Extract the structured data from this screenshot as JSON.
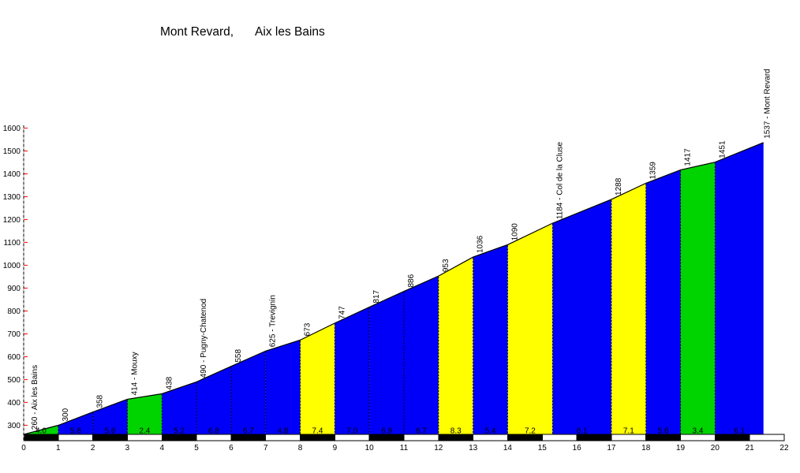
{
  "title": {
    "climb": "Mont Revard,",
    "start_town": "Aix les Bains"
  },
  "colors": {
    "easy_green": "#00D400",
    "moderate_blue": "#0000F8",
    "steep_yellow": "#FFFF00",
    "bar_black": "#000000",
    "bar_white": "#FFFFFF",
    "tick_red": "#FF2020",
    "axis_gray": "#9a9a9a",
    "axis_black": "#000000",
    "outline_black": "#000000",
    "gradient_text": "#1a1a1a"
  },
  "chart_data": {
    "type": "area",
    "title": "Mont Revard, Aix les Bains",
    "xlabel": "",
    "ylabel": "",
    "xlim": [
      0,
      22
    ],
    "ylim": [
      260,
      1600
    ],
    "grid": false,
    "legend": false,
    "x_ticks": [
      0,
      1,
      2,
      3,
      4,
      5,
      6,
      7,
      8,
      9,
      10,
      11,
      12,
      13,
      14,
      15,
      16,
      17,
      18,
      19,
      20,
      21,
      22
    ],
    "y_ticks": [
      300,
      400,
      500,
      600,
      700,
      800,
      900,
      1000,
      1100,
      1200,
      1300,
      1400,
      1500,
      1600
    ],
    "start": {
      "km": 0,
      "elevation": 260,
      "label": "260 - Aix les Bains"
    },
    "segments": [
      {
        "from": 0,
        "to": 1,
        "color": "green",
        "gradient": "4.0",
        "end_elevation": 300,
        "end_label": "300"
      },
      {
        "from": 1,
        "to": 2,
        "color": "blue",
        "gradient": "5.8",
        "end_elevation": 358,
        "end_label": "358"
      },
      {
        "from": 2,
        "to": 3,
        "color": "blue",
        "gradient": "5.6",
        "end_elevation": 414,
        "end_label": "414 - Mouxy"
      },
      {
        "from": 3,
        "to": 4,
        "color": "green",
        "gradient": "2.4",
        "end_elevation": 438,
        "end_label": "438"
      },
      {
        "from": 4,
        "to": 5,
        "color": "blue",
        "gradient": "5.2",
        "end_elevation": 490,
        "end_label": "490 - Pugny-Chatenod"
      },
      {
        "from": 5,
        "to": 6,
        "color": "blue",
        "gradient": "6.8",
        "end_elevation": 558,
        "end_label": "558"
      },
      {
        "from": 6,
        "to": 7,
        "color": "blue",
        "gradient": "6.7",
        "end_elevation": 625,
        "end_label": "625 - Trevignin"
      },
      {
        "from": 7,
        "to": 8,
        "color": "blue",
        "gradient": "4.8",
        "end_elevation": 673,
        "end_label": "673"
      },
      {
        "from": 8,
        "to": 9,
        "color": "yellow",
        "gradient": "7.4",
        "end_elevation": 747,
        "end_label": "747"
      },
      {
        "from": 9,
        "to": 10,
        "color": "blue",
        "gradient": "7.0",
        "end_elevation": 817,
        "end_label": "817"
      },
      {
        "from": 10,
        "to": 11,
        "color": "blue",
        "gradient": "6.9",
        "end_elevation": 886,
        "end_label": "886"
      },
      {
        "from": 11,
        "to": 12,
        "color": "blue",
        "gradient": "6.7",
        "end_elevation": 953,
        "end_label": "953"
      },
      {
        "from": 12,
        "to": 13,
        "color": "yellow",
        "gradient": "8.3",
        "end_elevation": 1036,
        "end_label": "1036"
      },
      {
        "from": 13,
        "to": 14,
        "color": "blue",
        "gradient": "5.4",
        "end_elevation": 1090,
        "end_label": "1090"
      },
      {
        "from": 14,
        "to": 15.3,
        "color": "yellow",
        "gradient": "7.2",
        "end_elevation": 1184,
        "end_label": "1184 - Col de la Cluse"
      },
      {
        "from": 15.3,
        "to": 17,
        "color": "blue",
        "gradient": "6.1",
        "end_elevation": 1288,
        "end_label": "1288"
      },
      {
        "from": 17,
        "to": 18,
        "color": "yellow",
        "gradient": "7.1",
        "end_elevation": 1359,
        "end_label": "1359"
      },
      {
        "from": 18,
        "to": 19,
        "color": "blue",
        "gradient": "5.8",
        "end_elevation": 1417,
        "end_label": "1417"
      },
      {
        "from": 19,
        "to": 20,
        "color": "green",
        "gradient": "3.4",
        "end_elevation": 1451,
        "end_label": "1451"
      },
      {
        "from": 20,
        "to": 21.4,
        "color": "blue",
        "gradient": "6.1",
        "end_elevation": 1537,
        "end_label": "1537 - Mont Revard"
      }
    ],
    "km_bar": {
      "start_km": 0,
      "end_km": 22,
      "black_on_even_km": true
    }
  }
}
